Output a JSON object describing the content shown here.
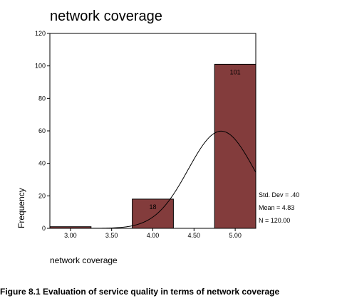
{
  "caption": "Figure 8.1 Evaluation of service quality in terms of network coverage",
  "chart_data": {
    "type": "bar",
    "title": "network coverage",
    "xlabel": "network coverage",
    "ylabel": "Frequency",
    "ylim": [
      0,
      120
    ],
    "yticks": [
      0,
      20,
      40,
      60,
      80,
      100,
      120
    ],
    "xlim": [
      2.75,
      5.25
    ],
    "xticks": [
      "3.00",
      "3.50",
      "4.00",
      "4.50",
      "5.00"
    ],
    "bars": [
      {
        "center": 3.0,
        "value": 1,
        "label": ""
      },
      {
        "center": 4.0,
        "value": 18,
        "label": "18"
      },
      {
        "center": 5.0,
        "value": 101,
        "label": "101"
      }
    ],
    "bar_width": 0.5,
    "bar_color": "#833c3c",
    "normal_curve": {
      "mean": 4.83,
      "std_dev": 0.4,
      "n": 120
    },
    "stats": [
      "Std. Dev = .40",
      "Mean = 4.83",
      "N = 120.00"
    ],
    "grid": false,
    "legend": "none"
  }
}
